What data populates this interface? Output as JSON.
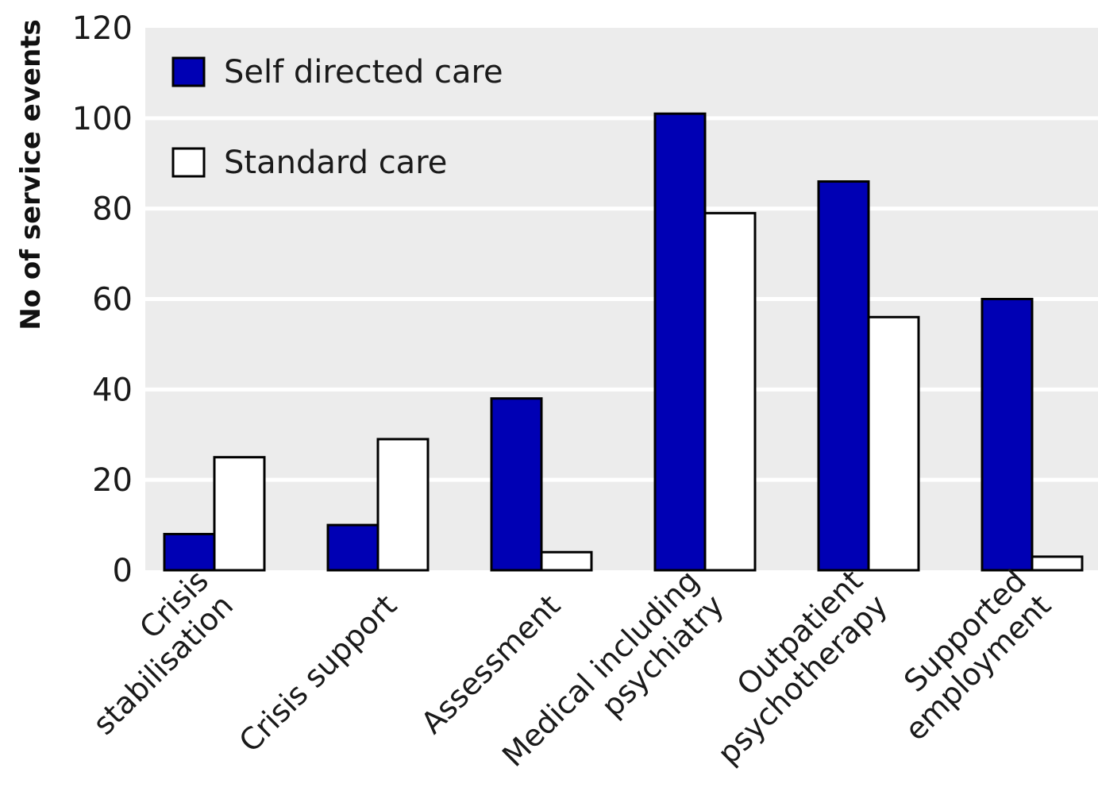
{
  "chart_data": {
    "type": "bar",
    "title": "",
    "xlabel": "",
    "ylabel": "No of service events",
    "ylim": [
      0,
      120
    ],
    "yticks": [
      0,
      20,
      40,
      60,
      80,
      100,
      120
    ],
    "grid": true,
    "legend_position": "top-left",
    "categories": [
      [
        "Crisis",
        "stabilisation"
      ],
      [
        "Crisis support"
      ],
      [
        "Assessment"
      ],
      [
        "Medical including",
        "psychiatry"
      ],
      [
        "Outpatient",
        "psychotherapy"
      ],
      [
        "Supported",
        "employment"
      ]
    ],
    "series": [
      {
        "name": "Self directed care",
        "color": "#0000b4",
        "values": [
          8,
          10,
          38,
          101,
          86,
          60
        ]
      },
      {
        "name": "Standard care",
        "color": "#ffffff",
        "values": [
          25,
          29,
          4,
          79,
          56,
          3
        ]
      }
    ],
    "colors": {
      "plot_background": "#ececec",
      "gridline": "#ffffff",
      "bar_outline": "#000000"
    }
  }
}
